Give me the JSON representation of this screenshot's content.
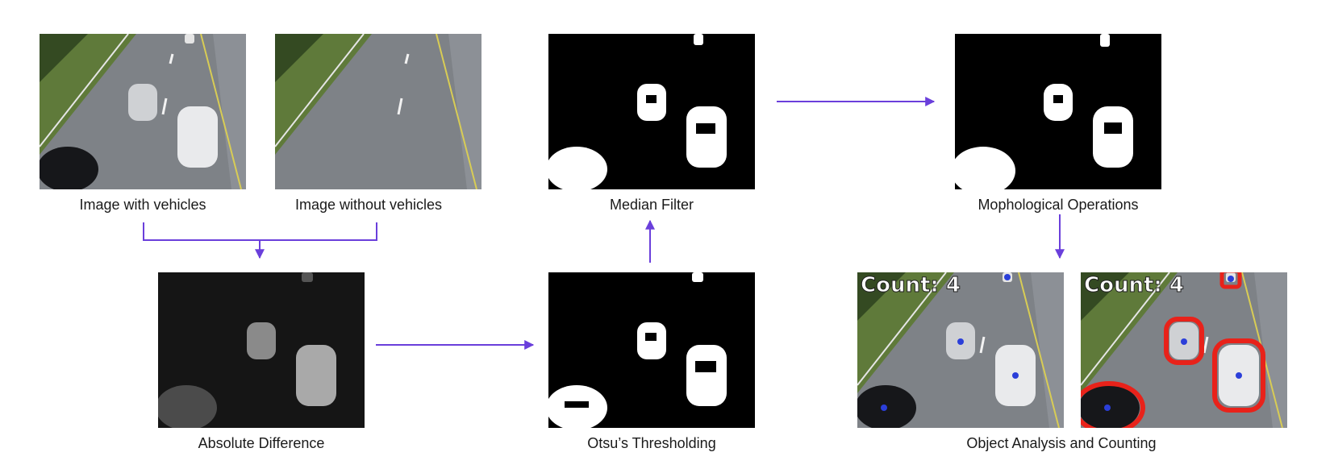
{
  "colors": {
    "arrow": "#6a3fdb",
    "contour": "#e8221a",
    "centroid": "#2b3fd9"
  },
  "steps": {
    "with_vehicles": "Image with vehicles",
    "without_vehicles": "Image without vehicles",
    "absolute_difference": "Absolute Difference",
    "otsu": "Otsu’s Thresholding",
    "median": "Median Filter",
    "morph": "Mophological Operations",
    "object_analysis": "Object Analysis and Counting"
  },
  "counting": {
    "label_a": "Count: 4",
    "label_b": "Count: 4"
  }
}
